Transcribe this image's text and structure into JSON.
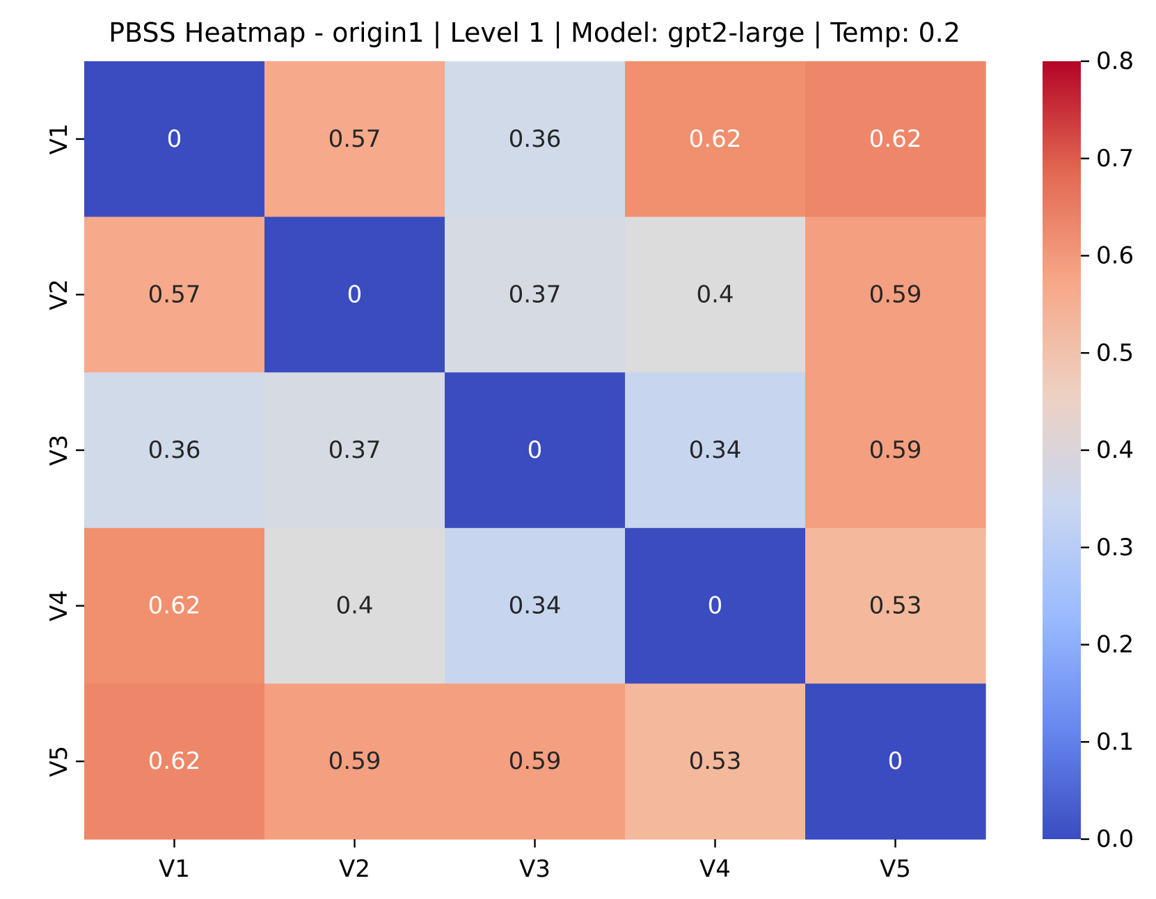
{
  "chart_data": {
    "type": "heatmap",
    "title": "PBSS Heatmap - origin1 | Level 1 | Model: gpt2-large | Temp: 0.2",
    "x_categories": [
      "V1",
      "V2",
      "V3",
      "V4",
      "V5"
    ],
    "y_categories": [
      "V1",
      "V2",
      "V3",
      "V4",
      "V5"
    ],
    "values": [
      [
        0,
        0.57,
        0.36,
        0.62,
        0.62
      ],
      [
        0.57,
        0,
        0.37,
        0.4,
        0.59
      ],
      [
        0.36,
        0.37,
        0,
        0.34,
        0.59
      ],
      [
        0.62,
        0.4,
        0.34,
        0,
        0.53
      ],
      [
        0.62,
        0.59,
        0.59,
        0.53,
        0
      ]
    ],
    "cell_labels": [
      [
        "0",
        "0.57",
        "0.36",
        "0.62",
        "0.62"
      ],
      [
        "0.57",
        "0",
        "0.37",
        "0.4",
        "0.59"
      ],
      [
        "0.36",
        "0.37",
        "0",
        "0.34",
        "0.59"
      ],
      [
        "0.62",
        "0.4",
        "0.34",
        "0",
        "0.53"
      ],
      [
        "0.62",
        "0.59",
        "0.59",
        "0.53",
        "0"
      ]
    ],
    "cell_colors": [
      [
        "#3b4cc0",
        "#f7a98b",
        "#d0dae9",
        "#f0906f",
        "#ee8669"
      ],
      [
        "#f7a98b",
        "#3b4cc0",
        "#d6dae2",
        "#dddcdc",
        "#f49f80"
      ],
      [
        "#d0dae9",
        "#d6dae2",
        "#3b4cc0",
        "#c7d6ee",
        "#f49f80"
      ],
      [
        "#f0906f",
        "#dddcdc",
        "#c7d6ee",
        "#3b4cc0",
        "#f4b89c"
      ],
      [
        "#ee8669",
        "#f49f80",
        "#f49f80",
        "#f4b89c",
        "#3b4cc0"
      ]
    ],
    "label_colors": [
      [
        "#ffffff",
        "#262626",
        "#262626",
        "#ffffff",
        "#ffffff"
      ],
      [
        "#262626",
        "#ffffff",
        "#262626",
        "#262626",
        "#262626"
      ],
      [
        "#262626",
        "#262626",
        "#ffffff",
        "#262626",
        "#262626"
      ],
      [
        "#ffffff",
        "#262626",
        "#262626",
        "#ffffff",
        "#262626"
      ],
      [
        "#ffffff",
        "#262626",
        "#262626",
        "#262626",
        "#ffffff"
      ]
    ],
    "colorbar": {
      "colormap": "coolwarm",
      "vmin": 0.0,
      "vmax": 0.8,
      "ticks": [
        0.0,
        0.1,
        0.2,
        0.3,
        0.4,
        0.5,
        0.6,
        0.7,
        0.8
      ],
      "tick_labels": [
        "0.0",
        "0.1",
        "0.2",
        "0.3",
        "0.4",
        "0.5",
        "0.6",
        "0.7",
        "0.8"
      ],
      "gradient_colors": [
        "#3b4cc0",
        "#6788ee",
        "#9abbff",
        "#c9d7f0",
        "#edd1c2",
        "#f7a889",
        "#e26952",
        "#b40426"
      ]
    },
    "grid": false,
    "xlabel": "",
    "ylabel": ""
  }
}
